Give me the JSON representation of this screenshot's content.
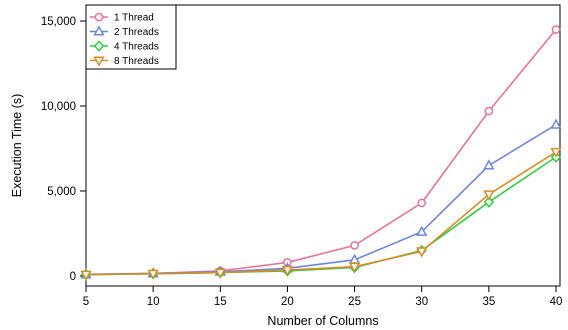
{
  "chart_data": {
    "type": "line",
    "xlabel": "Number of Columns",
    "ylabel": "Execution Time (s)",
    "xlim": [
      5,
      40
    ],
    "ylim": [
      0,
      15000
    ],
    "x_ticks": [
      5,
      10,
      15,
      20,
      25,
      30,
      35,
      40
    ],
    "x_tick_labels": [
      "5",
      "10",
      "15",
      "20",
      "25",
      "30",
      "35",
      "40"
    ],
    "y_ticks": [
      0,
      5000,
      10000,
      15000
    ],
    "y_tick_labels": [
      "0",
      "5,000",
      "10,000",
      "15,000"
    ],
    "grid": false,
    "legend_position": "top-left",
    "x": [
      5,
      10,
      15,
      20,
      25,
      30,
      35,
      40
    ],
    "series": [
      {
        "name": "1 Thread",
        "marker": "circle",
        "color": "#e7739b",
        "values": [
          100,
          150,
          300,
          800,
          1800,
          4300,
          9700,
          14500
        ]
      },
      {
        "name": "2 Threads",
        "marker": "triangle-up",
        "color": "#6f86dc",
        "values": [
          90,
          150,
          250,
          450,
          950,
          2600,
          6500,
          8900
        ]
      },
      {
        "name": "4 Threads",
        "marker": "diamond",
        "color": "#2ecc40",
        "values": [
          80,
          130,
          200,
          300,
          500,
          1500,
          4350,
          7000
        ]
      },
      {
        "name": "8 Threads",
        "marker": "triangle-down",
        "color": "#d98b2b",
        "values": [
          80,
          130,
          200,
          350,
          550,
          1450,
          4800,
          7300
        ]
      }
    ]
  }
}
